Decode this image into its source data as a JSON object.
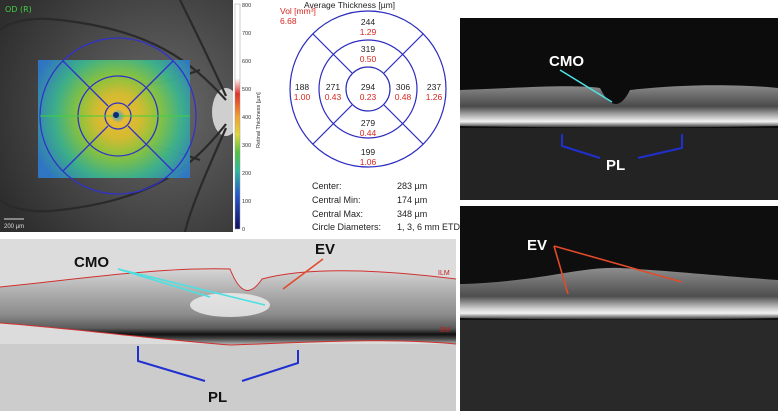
{
  "fundus": {
    "eye_label": "OD (R)",
    "scalebar_label": "200 µm",
    "colors": {
      "ring": "#3232c8",
      "map_low": "#1f4fd1",
      "map_mid": "#47c44c",
      "map_high": "#e03a2a"
    }
  },
  "colorscale": {
    "ticks": [
      "800",
      "700",
      "600",
      "500",
      "400",
      "300",
      "200",
      "100",
      "0"
    ],
    "title": "Retinal Thickness [µm]"
  },
  "etdrs": {
    "header": "Average Thickness [µm]",
    "vol_label": "Vol [mm³]",
    "vol_value": "6.68",
    "sectors": {
      "outer_superior": {
        "thickness": "244",
        "vol": "1.29"
      },
      "inner_superior": {
        "thickness": "319",
        "vol": "0.50"
      },
      "outer_nasal_left": {
        "thickness": "188",
        "vol": "1.00"
      },
      "inner_left": {
        "thickness": "271",
        "vol": "0.43"
      },
      "center": {
        "thickness": "294",
        "vol": "0.23"
      },
      "inner_right": {
        "thickness": "306",
        "vol": "0.48"
      },
      "outer_right": {
        "thickness": "237",
        "vol": "1.26"
      },
      "inner_inferior": {
        "thickness": "279",
        "vol": "0.44"
      },
      "outer_inferior": {
        "thickness": "199",
        "vol": "1.06"
      }
    },
    "stats": [
      {
        "key": "Center:",
        "value": "283 µm"
      },
      {
        "key": "Central Min:",
        "value": "174 µm"
      },
      {
        "key": "Central Max:",
        "value": "348 µm"
      },
      {
        "key": "Circle Diameters:",
        "value": "1, 3, 6 mm ETDRS"
      }
    ],
    "colors": {
      "ring": "#2b2bbf",
      "vol": "#d8261e",
      "text": "#222222"
    }
  },
  "oct_bottom": {
    "labels": {
      "cmo": "CMO",
      "ev": "EV",
      "pl": "PL",
      "ilm": "ILM",
      "bm": "BM"
    },
    "colors": {
      "cmo_line": "#4ee0e0",
      "ev_line": "#e24a2a",
      "pl_line": "#2030d0",
      "boundary": "#d03030"
    }
  },
  "oct_right_top": {
    "labels": {
      "cmo": "CMO",
      "pl": "PL"
    }
  },
  "oct_right_bottom": {
    "labels": {
      "ev": "EV"
    }
  }
}
